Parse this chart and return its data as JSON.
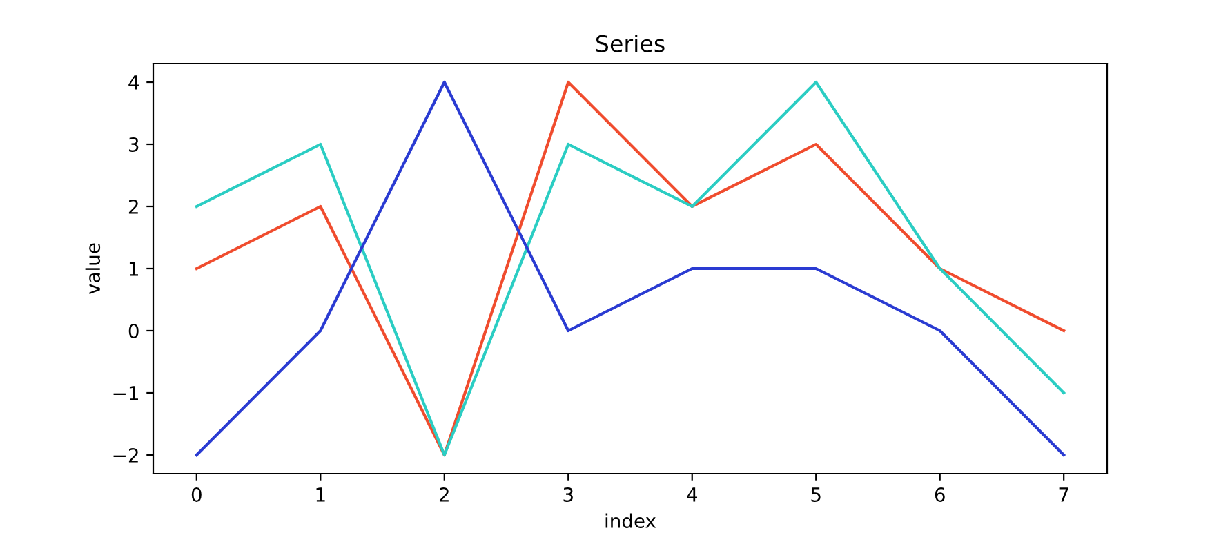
{
  "chart_data": {
    "type": "line",
    "title": "Series",
    "xlabel": "index",
    "ylabel": "value",
    "x": [
      0,
      1,
      2,
      3,
      4,
      5,
      6,
      7
    ],
    "series": [
      {
        "color": "#f04c2e",
        "values": [
          1,
          2,
          -2,
          4,
          2,
          3,
          1,
          0
        ]
      },
      {
        "color": "#2bcdc3",
        "values": [
          2,
          3,
          -2,
          3,
          2,
          4,
          1,
          -1
        ]
      },
      {
        "color": "#2a3bd2",
        "values": [
          -2,
          0,
          4,
          0,
          1,
          1,
          0,
          -2
        ]
      }
    ],
    "xlim": [
      -0.35,
      7.35
    ],
    "ylim": [
      -2.3,
      4.3
    ],
    "xticks": [
      0,
      1,
      2,
      3,
      4,
      5,
      6,
      7
    ],
    "yticks": [
      {
        "value": -2,
        "label": "−2"
      },
      {
        "value": -1,
        "label": "−1"
      },
      0,
      1,
      2,
      3,
      4
    ],
    "grid": false,
    "marker": "none",
    "line_style": "solid"
  }
}
